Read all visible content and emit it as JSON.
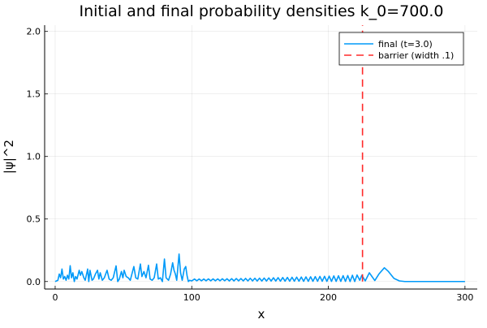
{
  "chart_data": {
    "type": "line",
    "title": "Initial and final probability densities k_0=700.0",
    "xlabel": "x",
    "ylabel": "|ψ|^2",
    "xlim": [
      -7.7,
      309
    ],
    "ylim": [
      -0.06,
      2.05
    ],
    "xticks": [
      0,
      100,
      200,
      300
    ],
    "yticks": [
      0.0,
      0.5,
      1.0,
      1.5,
      2.0
    ],
    "xtick_labels": [
      "0",
      "100",
      "200",
      "300"
    ],
    "ytick_labels": [
      "0.0",
      "0.5",
      "1.0",
      "1.5",
      "2.0"
    ],
    "grid": true,
    "legend_position": "top-right",
    "series": [
      {
        "name": "final (t=3.0)",
        "color": "#009af9",
        "style": "solid",
        "points": [
          [
            0,
            0
          ],
          [
            2,
            0.01
          ],
          [
            3,
            0.06
          ],
          [
            4,
            0.03
          ],
          [
            5,
            0.1
          ],
          [
            6,
            0.02
          ],
          [
            7,
            0.04
          ],
          [
            8,
            0.01
          ],
          [
            9,
            0.05
          ],
          [
            10,
            0.02
          ],
          [
            11,
            0.126
          ],
          [
            12,
            0.03
          ],
          [
            13,
            0.07
          ],
          [
            14,
            0.0
          ],
          [
            15,
            0.04
          ],
          [
            16,
            0.02
          ],
          [
            17.6,
            0.09
          ],
          [
            18.5,
            0.05
          ],
          [
            19.5,
            0.08
          ],
          [
            21,
            0.03
          ],
          [
            22,
            0.01
          ],
          [
            23.8,
            0.1
          ],
          [
            24.6,
            0.0
          ],
          [
            25.5,
            0.09
          ],
          [
            27,
            0.01
          ],
          [
            28,
            0.02
          ],
          [
            29.5,
            0.06
          ],
          [
            31,
            0.09
          ],
          [
            32,
            0.02
          ],
          [
            33,
            0.07
          ],
          [
            34.5,
            0.01
          ],
          [
            36,
            0.03
          ],
          [
            38,
            0.09
          ],
          [
            39.5,
            0.02
          ],
          [
            41,
            0.01
          ],
          [
            42.5,
            0.03
          ],
          [
            44.6,
            0.125
          ],
          [
            45.8,
            0.0
          ],
          [
            47,
            0.02
          ],
          [
            48.5,
            0.08
          ],
          [
            49.6,
            0.03
          ],
          [
            50.5,
            0.09
          ],
          [
            52,
            0.04
          ],
          [
            53.5,
            0.03
          ],
          [
            55,
            0.01
          ],
          [
            57.6,
            0.12
          ],
          [
            59,
            0.03
          ],
          [
            60.5,
            0.02
          ],
          [
            62.4,
            0.14
          ],
          [
            63.5,
            0.04
          ],
          [
            65,
            0.08
          ],
          [
            66.5,
            0.03
          ],
          [
            68.3,
            0.13
          ],
          [
            69.5,
            0.02
          ],
          [
            71,
            0.01
          ],
          [
            72.5,
            0.03
          ],
          [
            74.3,
            0.14
          ],
          [
            75.5,
            0.02
          ],
          [
            77,
            0.03
          ],
          [
            78.5,
            0.0
          ],
          [
            80,
            0.18
          ],
          [
            81.2,
            0.03
          ],
          [
            83,
            0.01
          ],
          [
            84.5,
            0.06
          ],
          [
            86,
            0.15
          ],
          [
            87,
            0.09
          ],
          [
            88,
            0.06
          ],
          [
            89,
            0.01
          ],
          [
            90.7,
            0.22
          ],
          [
            91.8,
            0.07
          ],
          [
            93,
            0.01
          ],
          [
            94.5,
            0.1
          ],
          [
            95.6,
            0.12
          ],
          [
            96.5,
            0.05
          ],
          [
            97.5,
            0.0
          ],
          [
            98.5,
            0.01
          ],
          [
            100,
            0.005
          ],
          [
            102,
            0.02
          ],
          [
            103.7,
            0.006
          ],
          [
            105.4,
            0.02
          ],
          [
            107.1,
            0.006
          ],
          [
            108.8,
            0.02
          ],
          [
            110.5,
            0.006
          ],
          [
            112.2,
            0.021
          ],
          [
            113.9,
            0.006
          ],
          [
            115.6,
            0.021
          ],
          [
            117.3,
            0.006
          ],
          [
            119,
            0.021
          ],
          [
            120.7,
            0.006
          ],
          [
            122.4,
            0.022
          ],
          [
            124.1,
            0.006
          ],
          [
            125.8,
            0.022
          ],
          [
            127.5,
            0.005
          ],
          [
            129.2,
            0.023
          ],
          [
            130.9,
            0.005
          ],
          [
            132.6,
            0.024
          ],
          [
            134.3,
            0.005
          ],
          [
            136,
            0.024
          ],
          [
            137.7,
            0.005
          ],
          [
            139.4,
            0.025
          ],
          [
            141.1,
            0.005
          ],
          [
            142.8,
            0.026
          ],
          [
            144.5,
            0.005
          ],
          [
            146.2,
            0.026
          ],
          [
            147.9,
            0.004
          ],
          [
            149.6,
            0.027
          ],
          [
            151.3,
            0.004
          ],
          [
            153,
            0.028
          ],
          [
            154.7,
            0.004
          ],
          [
            156.4,
            0.029
          ],
          [
            158.1,
            0.004
          ],
          [
            159.8,
            0.03
          ],
          [
            161.5,
            0.004
          ],
          [
            163.2,
            0.031
          ],
          [
            164.9,
            0.003
          ],
          [
            166.6,
            0.032
          ],
          [
            168.3,
            0.003
          ],
          [
            170,
            0.033
          ],
          [
            171.7,
            0.003
          ],
          [
            173.4,
            0.034
          ],
          [
            175.1,
            0.003
          ],
          [
            176.8,
            0.035
          ],
          [
            178.5,
            0.003
          ],
          [
            180.2,
            0.036
          ],
          [
            181.9,
            0.002
          ],
          [
            183.6,
            0.037
          ],
          [
            185.3,
            0.002
          ],
          [
            187,
            0.038
          ],
          [
            188.7,
            0.002
          ],
          [
            190.4,
            0.039
          ],
          [
            192.1,
            0.002
          ],
          [
            193.8,
            0.041
          ],
          [
            195.5,
            0.002
          ],
          [
            197.2,
            0.042
          ],
          [
            198.9,
            0.001
          ],
          [
            200.6,
            0.043
          ],
          [
            202.3,
            0.001
          ],
          [
            204,
            0.045
          ],
          [
            205.7,
            0.001
          ],
          [
            207.4,
            0.046
          ],
          [
            209.1,
            0.001
          ],
          [
            210.8,
            0.047
          ],
          [
            212.5,
            0.001
          ],
          [
            214.2,
            0.048
          ],
          [
            215.9,
            0.0
          ],
          [
            217.6,
            0.05
          ],
          [
            219.3,
            0.0
          ],
          [
            221,
            0.052
          ],
          [
            223,
            0.01
          ],
          [
            224.5,
            0.05
          ],
          [
            227,
            0.005
          ],
          [
            230,
            0.07
          ],
          [
            234,
            0.008
          ],
          [
            237,
            0.06
          ],
          [
            241,
            0.11
          ],
          [
            244,
            0.08
          ],
          [
            248,
            0.025
          ],
          [
            252,
            0.005
          ],
          [
            256,
            0.0
          ],
          [
            300,
            0.0
          ]
        ]
      },
      {
        "name": "barrier (width .1)",
        "color": "#e26f46",
        "stroke": "#ff2a2a",
        "style": "dashed",
        "points": [
          [
            225,
            0
          ],
          [
            225,
            2.05
          ]
        ]
      }
    ]
  }
}
